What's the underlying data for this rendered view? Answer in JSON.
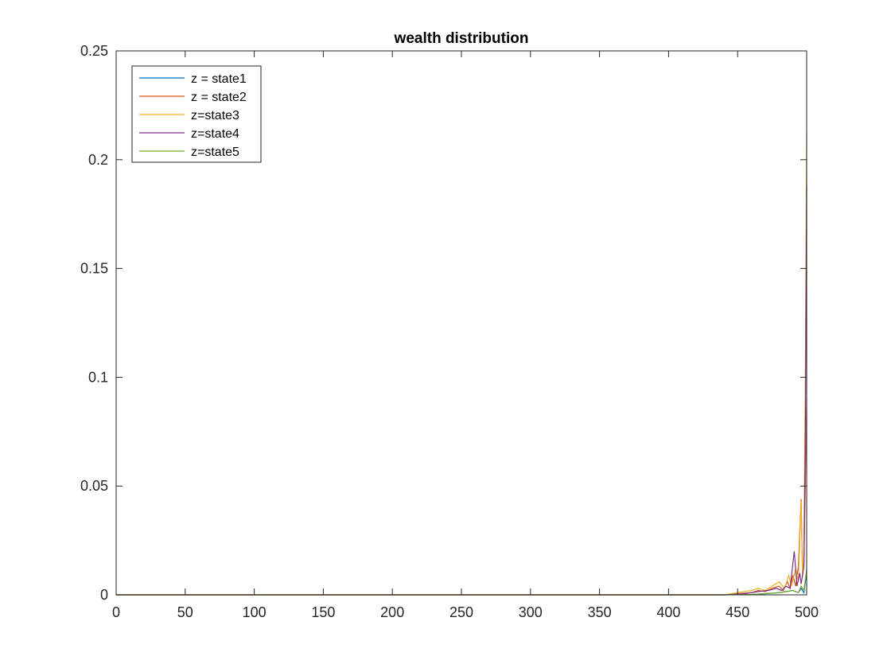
{
  "chart_data": {
    "type": "line",
    "title": "wealth distribution",
    "xlabel": "",
    "ylabel": "",
    "xlim": [
      0,
      500
    ],
    "ylim": [
      0,
      0.25
    ],
    "xticks": [
      0,
      50,
      100,
      150,
      200,
      250,
      300,
      350,
      400,
      450,
      500
    ],
    "yticks": [
      0,
      0.05,
      0.1,
      0.15,
      0.2,
      0.25
    ],
    "xtick_labels": [
      "0",
      "50",
      "100",
      "150",
      "200",
      "250",
      "300",
      "350",
      "400",
      "450",
      "500"
    ],
    "ytick_labels": [
      "0",
      "0.05",
      "0.1",
      "0.15",
      "0.2",
      "0.25"
    ],
    "grid": false,
    "legend_position": "top-left",
    "series": [
      {
        "name": "z = state1",
        "color": "#0072BD",
        "points": [
          [
            0,
            0
          ],
          [
            440,
            0
          ],
          [
            460,
            0.0002
          ],
          [
            470,
            0.0005
          ],
          [
            480,
            0.001
          ],
          [
            485,
            0.0015
          ],
          [
            490,
            0.002
          ],
          [
            494,
            0.001
          ],
          [
            496,
            0.003
          ],
          [
            498,
            0.001
          ],
          [
            500,
            0.01
          ]
        ]
      },
      {
        "name": "z = state2",
        "color": "#D95319",
        "points": [
          [
            0,
            0
          ],
          [
            440,
            0
          ],
          [
            450,
            0.0005
          ],
          [
            460,
            0.001
          ],
          [
            465,
            0.002
          ],
          [
            470,
            0.0015
          ],
          [
            475,
            0.003
          ],
          [
            480,
            0.004
          ],
          [
            483,
            0.002
          ],
          [
            486,
            0.006
          ],
          [
            488,
            0.003
          ],
          [
            490,
            0.009
          ],
          [
            492,
            0.004
          ],
          [
            494,
            0.013
          ],
          [
            496,
            0.044
          ],
          [
            497,
            0.01
          ],
          [
            498,
            0.015
          ],
          [
            499,
            0.05
          ],
          [
            500,
            0.09
          ]
        ]
      },
      {
        "name": "z=state3",
        "color": "#EDB120",
        "points": [
          [
            0,
            0
          ],
          [
            440,
            0
          ],
          [
            450,
            0.001
          ],
          [
            460,
            0.002
          ],
          [
            465,
            0.003
          ],
          [
            470,
            0.002
          ],
          [
            475,
            0.004
          ],
          [
            480,
            0.006
          ],
          [
            484,
            0.003
          ],
          [
            487,
            0.009
          ],
          [
            489,
            0.004
          ],
          [
            492,
            0.012
          ],
          [
            494,
            0.006
          ],
          [
            496,
            0.043
          ],
          [
            497,
            0.008
          ],
          [
            498,
            0.02
          ],
          [
            499,
            0.1
          ],
          [
            500,
            0.213
          ]
        ]
      },
      {
        "name": "z=state4",
        "color": "#7E2F8E",
        "points": [
          [
            0,
            0
          ],
          [
            440,
            0
          ],
          [
            455,
            0.0005
          ],
          [
            465,
            0.0015
          ],
          [
            472,
            0.002
          ],
          [
            478,
            0.003
          ],
          [
            482,
            0.002
          ],
          [
            485,
            0.004
          ],
          [
            488,
            0.003
          ],
          [
            491,
            0.02
          ],
          [
            493,
            0.004
          ],
          [
            495,
            0.01
          ],
          [
            496,
            0.005
          ],
          [
            498,
            0.013
          ],
          [
            499,
            0.07
          ],
          [
            500,
            0.188
          ]
        ]
      },
      {
        "name": "z=state5",
        "color": "#77AC30",
        "points": [
          [
            0,
            0
          ],
          [
            440,
            0
          ],
          [
            460,
            0.0002
          ],
          [
            470,
            0.0006
          ],
          [
            480,
            0.001
          ],
          [
            486,
            0.0015
          ],
          [
            490,
            0.002
          ],
          [
            494,
            0.001
          ],
          [
            496,
            0.004
          ],
          [
            498,
            0.002
          ],
          [
            500,
            0.012
          ]
        ]
      }
    ]
  }
}
